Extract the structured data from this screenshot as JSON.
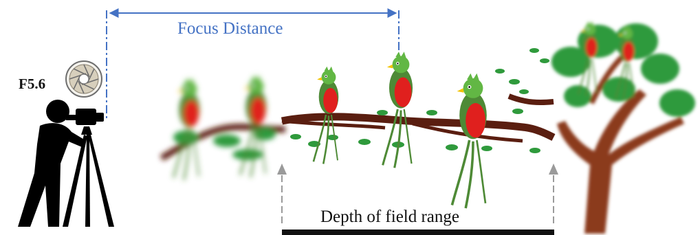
{
  "labels": {
    "focus_distance": "Focus Distance",
    "f_number": "F5.6",
    "depth_of_field": "Depth of field range"
  },
  "colors": {
    "focus_line": "#4472c4",
    "dof_marker": "#9a9a9a",
    "dof_bar": "#111111",
    "branch": "#5a1e10",
    "trunk": "#8b3a1e",
    "leaf": "#2f9a3c",
    "bird_body": "#4e8a36",
    "bird_belly": "#e0201e",
    "bird_head": "#62b744",
    "beak": "#f2c300",
    "photographer": "#000000"
  },
  "icons": {
    "aperture": "aperture-icon",
    "photographer": "photographer-with-camera-icon"
  }
}
